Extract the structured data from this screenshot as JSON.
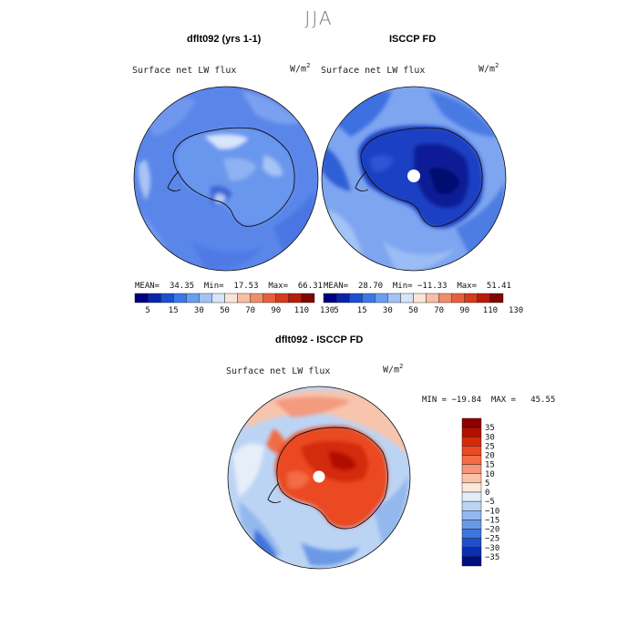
{
  "page": {
    "season": "JJA"
  },
  "panels": [
    {
      "title": "dflt092 (yrs 1-1)",
      "variable": "Surface net LW flux",
      "units": "W/m",
      "units_exp": "2",
      "stats": {
        "mean_label": "MEAN=",
        "mean": "34.35",
        "min_label": "Min=",
        "min": "17.53",
        "max_label": "Max=",
        "max": "66.31"
      }
    },
    {
      "title": "ISCCP FD",
      "variable": "Surface net LW flux",
      "units": "W/m",
      "units_exp": "2",
      "stats": {
        "mean_label": "MEAN=",
        "mean": "28.70",
        "min_label": "Min=",
        "min": "−11.33",
        "max_label": "Max=",
        "max": "51.41"
      }
    },
    {
      "title": "dflt092 - ISCCP FD",
      "variable": "Surface net LW flux",
      "units": "W/m",
      "units_exp": "2",
      "stats_line": "MIN = −19.84  MAX =   45.55"
    }
  ],
  "chart_data": [
    {
      "type": "heatmap",
      "title": "dflt092 (yrs 1-1)",
      "colorbar": {
        "orientation": "horizontal",
        "tick_labels": [
          "5",
          "15",
          "30",
          "50",
          "70",
          "90",
          "110",
          "130"
        ],
        "colors": [
          "#00007f",
          "#0a24a8",
          "#1c4fd1",
          "#3a78e8",
          "#6a9ef0",
          "#a3c3f5",
          "#d6e6fa",
          "#fbe5d8",
          "#f7bfa4",
          "#f08e6c",
          "#e6603f",
          "#d63b1c",
          "#b81c0a",
          "#7e0800"
        ]
      },
      "projection": "south-polar-stereographic",
      "stats": {
        "mean": 34.35,
        "min": 17.53,
        "max": 66.31
      }
    },
    {
      "type": "heatmap",
      "title": "ISCCP FD",
      "colorbar": {
        "orientation": "horizontal",
        "tick_labels": [
          "5",
          "15",
          "30",
          "50",
          "70",
          "90",
          "110",
          "130"
        ],
        "colors": [
          "#00007f",
          "#0a24a8",
          "#1c4fd1",
          "#3a78e8",
          "#6a9ef0",
          "#a3c3f5",
          "#d6e6fa",
          "#fbe5d8",
          "#f7bfa4",
          "#f08e6c",
          "#e6603f",
          "#d63b1c",
          "#b81c0a",
          "#7e0800"
        ]
      },
      "projection": "south-polar-stereographic",
      "stats": {
        "mean": 28.7,
        "min": -11.33,
        "max": 51.41
      }
    },
    {
      "type": "heatmap",
      "title": "dflt092 - ISCCP FD",
      "colorbar": {
        "orientation": "vertical",
        "tick_labels": [
          "35",
          "30",
          "25",
          "20",
          "15",
          "10",
          "5",
          "0",
          "−5",
          "−10",
          "−15",
          "−20",
          "−25",
          "−30",
          "−35"
        ],
        "colors": [
          "#8c0000",
          "#b30f00",
          "#d42b0d",
          "#ea4a22",
          "#f26c45",
          "#f7957a",
          "#fbc2a8",
          "#fde8dc",
          "#e3edf9",
          "#bcd4f4",
          "#93b8ee",
          "#6a99e6",
          "#3f74dc",
          "#1f4fcc",
          "#0b2fb0",
          "#000f80"
        ]
      },
      "projection": "south-polar-stereographic",
      "stats": {
        "min": -19.84,
        "max": 45.55
      }
    }
  ]
}
